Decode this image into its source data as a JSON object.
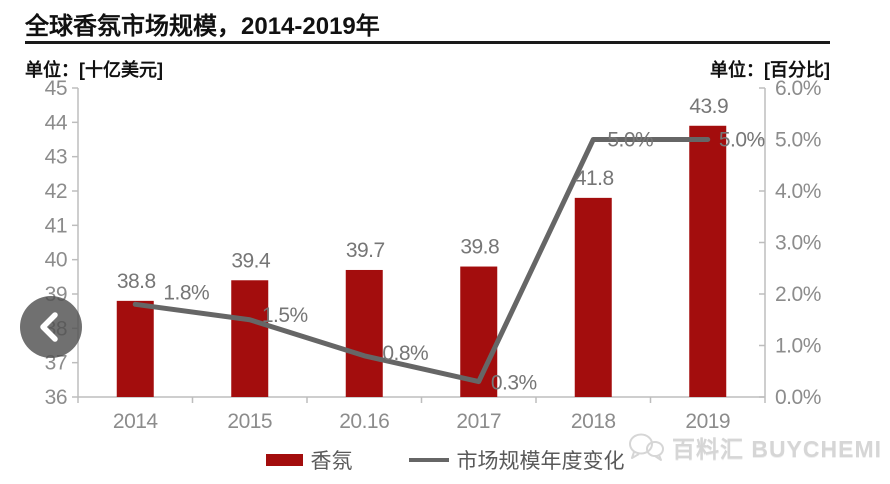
{
  "page": {
    "title": "全球香氛市场规模，2014-2019年",
    "left_unit_label": "单位：[十亿美元]",
    "right_unit_label": "单位：[百分比]"
  },
  "chart_data": {
    "type": "bar",
    "title": "全球香氛市场规模，2014-2019年",
    "categories": [
      "2014",
      "2015",
      "20.16",
      "2017",
      "2018",
      "2019"
    ],
    "series": [
      {
        "name": "香氛",
        "type": "bar",
        "axis": "left",
        "color": "#A30D0D",
        "values": [
          38.8,
          39.4,
          39.7,
          39.8,
          41.8,
          43.9
        ],
        "labels": [
          "38.8",
          "39.4",
          "39.7",
          "39.8",
          "41.8",
          "43.9"
        ]
      },
      {
        "name": "市场规模年度变化",
        "type": "line",
        "axis": "right",
        "color": "#666666",
        "values": [
          1.8,
          1.5,
          0.8,
          0.3,
          5.0,
          5.0
        ],
        "labels": [
          "1.8%",
          "1.5%",
          "0.8%",
          "0.3%",
          "5.0%",
          "5.0%"
        ]
      }
    ],
    "left_axis": {
      "unit": "十亿美元",
      "min": 36,
      "max": 45,
      "step": 1,
      "tick_labels": [
        "45",
        "44",
        "43",
        "42",
        "41",
        "40",
        "39",
        "38",
        "37",
        "36"
      ]
    },
    "right_axis": {
      "unit": "百分比",
      "min": 0,
      "max": 6,
      "step": 1,
      "tick_labels": [
        "6.0%",
        "5.0%",
        "4.0%",
        "3.0%",
        "2.0%",
        "1.0%",
        "0.0%"
      ]
    },
    "grid": false,
    "legend_position": "bottom"
  },
  "colors": {
    "bar": "#A30D0D",
    "line": "#666666",
    "axis": "#bdbdbd",
    "tick_text": "#8c8c8c",
    "data_label_text": "#767676"
  },
  "icons": {
    "nav_prev": "chevron-left",
    "watermark_logo": "chat-bubbles"
  },
  "watermark": {
    "text": "百料汇 BUYCHEMI"
  }
}
